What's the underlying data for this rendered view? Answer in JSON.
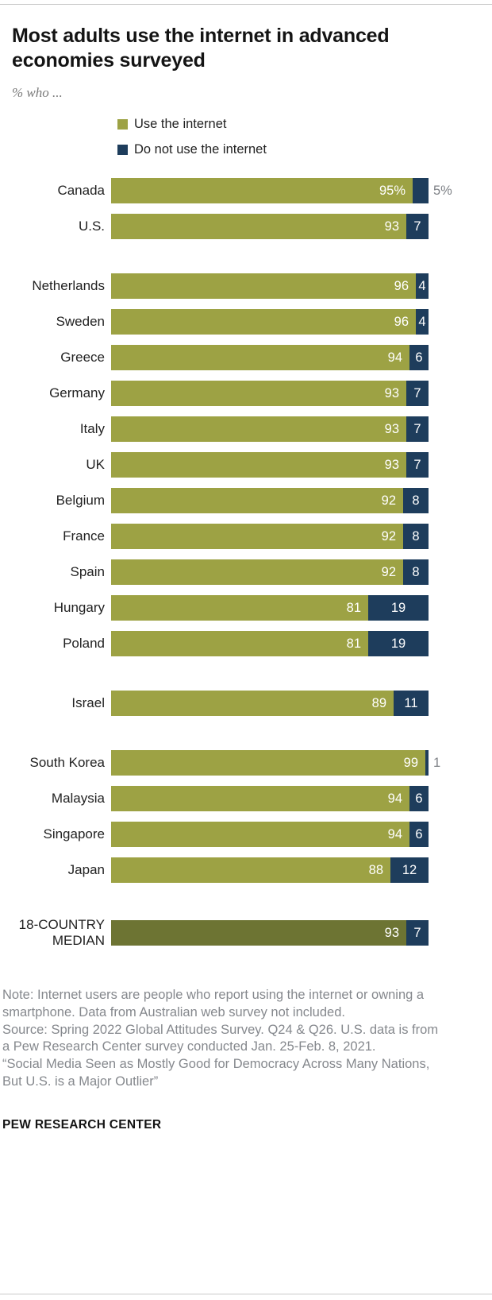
{
  "title": "Most adults use the internet in advanced economies surveyed",
  "subtitle": "% who ...",
  "legend": {
    "use": {
      "label": "Use the internet"
    },
    "no": {
      "label": "Do not use the internet"
    }
  },
  "chart_data": {
    "type": "bar",
    "orientation": "horizontal",
    "stacked": true,
    "x_max": 100,
    "series": [
      "Use the internet",
      "Do not use the internet"
    ],
    "colors": {
      "use": "#9da244",
      "use_median": "#6d7433",
      "no": "#1e3d5c",
      "outside_label": "#7f8287"
    },
    "groups": [
      {
        "name": "north-america",
        "rows": [
          {
            "label": "Canada",
            "use": 95,
            "no": 5,
            "use_text": "95%",
            "no_text": "5%",
            "no_label_outside": true
          },
          {
            "label": "U.S.",
            "use": 93,
            "no": 7,
            "use_text": "93",
            "no_text": "7"
          }
        ]
      },
      {
        "name": "europe",
        "rows": [
          {
            "label": "Netherlands",
            "use": 96,
            "no": 4,
            "use_text": "96",
            "no_text": "4"
          },
          {
            "label": "Sweden",
            "use": 96,
            "no": 4,
            "use_text": "96",
            "no_text": "4"
          },
          {
            "label": "Greece",
            "use": 94,
            "no": 6,
            "use_text": "94",
            "no_text": "6"
          },
          {
            "label": "Germany",
            "use": 93,
            "no": 7,
            "use_text": "93",
            "no_text": "7"
          },
          {
            "label": "Italy",
            "use": 93,
            "no": 7,
            "use_text": "93",
            "no_text": "7"
          },
          {
            "label": "UK",
            "use": 93,
            "no": 7,
            "use_text": "93",
            "no_text": "7"
          },
          {
            "label": "Belgium",
            "use": 92,
            "no": 8,
            "use_text": "92",
            "no_text": "8"
          },
          {
            "label": "France",
            "use": 92,
            "no": 8,
            "use_text": "92",
            "no_text": "8"
          },
          {
            "label": "Spain",
            "use": 92,
            "no": 8,
            "use_text": "92",
            "no_text": "8"
          },
          {
            "label": "Hungary",
            "use": 81,
            "no": 19,
            "use_text": "81",
            "no_text": "19"
          },
          {
            "label": "Poland",
            "use": 81,
            "no": 19,
            "use_text": "81",
            "no_text": "19"
          }
        ]
      },
      {
        "name": "middle-east",
        "rows": [
          {
            "label": "Israel",
            "use": 89,
            "no": 11,
            "use_text": "89",
            "no_text": "11"
          }
        ]
      },
      {
        "name": "asia-pacific",
        "rows": [
          {
            "label": "South Korea",
            "use": 99,
            "no": 1,
            "use_text": "99",
            "no_text": "1",
            "no_label_outside": true
          },
          {
            "label": "Malaysia",
            "use": 94,
            "no": 6,
            "use_text": "94",
            "no_text": "6"
          },
          {
            "label": "Singapore",
            "use": 94,
            "no": 6,
            "use_text": "94",
            "no_text": "6"
          },
          {
            "label": "Japan",
            "use": 88,
            "no": 12,
            "use_text": "88",
            "no_text": "12"
          }
        ]
      },
      {
        "name": "median",
        "rows": [
          {
            "label": "18-COUNTRY MEDIAN",
            "use": 93,
            "no": 7,
            "use_text": "93",
            "no_text": "7",
            "median": true
          }
        ]
      }
    ]
  },
  "notes": {
    "note": "Note: Internet users are people who report using the internet or owning a smartphone. Data from Australian web survey not included.",
    "source": "Source: Spring 2022 Global Attitudes Survey. Q24 & Q26. U.S. data is from a Pew Research Center survey conducted Jan. 25-Feb. 8, 2021.",
    "report": "“Social Media Seen as Mostly Good for Democracy Across Many Nations, But U.S. is a Major Outlier”"
  },
  "footer": "PEW RESEARCH CENTER"
}
